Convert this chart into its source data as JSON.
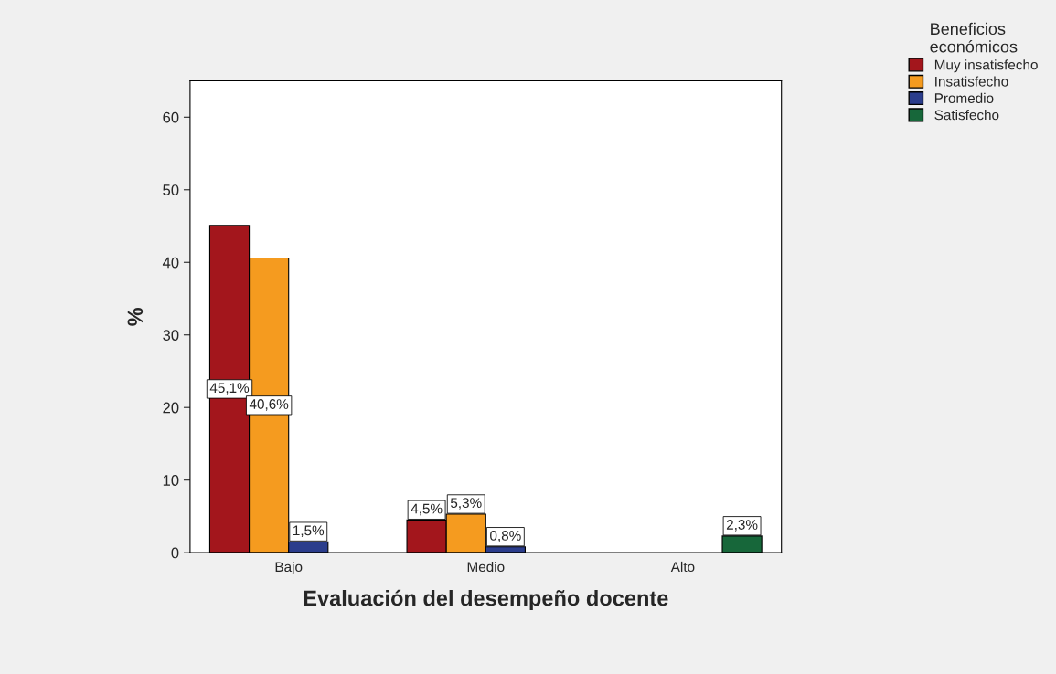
{
  "chart_data": {
    "type": "bar",
    "xlabel": "Evaluación del desempeño docente",
    "ylabel": "%",
    "legend_title": "Beneficios\neconómicos",
    "categories": [
      "Bajo",
      "Medio",
      "Alto"
    ],
    "series": [
      {
        "name": "Muy insatisfecho",
        "color": "#a3161c",
        "values": [
          45.1,
          4.5,
          null
        ],
        "value_labels": [
          "45,1%",
          "4,5%",
          null
        ]
      },
      {
        "name": "Insatisfecho",
        "color": "#f59b1f",
        "values": [
          40.6,
          5.3,
          null
        ],
        "value_labels": [
          "40,6%",
          "5,3%",
          null
        ]
      },
      {
        "name": "Promedio",
        "color": "#2b3d8c",
        "values": [
          1.5,
          0.8,
          null
        ],
        "value_labels": [
          "1,5%",
          "0,8%",
          null
        ]
      },
      {
        "name": "Satisfecho",
        "color": "#17673a",
        "values": [
          null,
          null,
          2.3
        ],
        "value_labels": [
          null,
          null,
          "2,3%"
        ]
      }
    ],
    "ylim": [
      0,
      65
    ],
    "yticks": [
      0,
      10,
      20,
      30,
      40,
      50,
      60
    ],
    "grid": false,
    "legend": "top right"
  }
}
